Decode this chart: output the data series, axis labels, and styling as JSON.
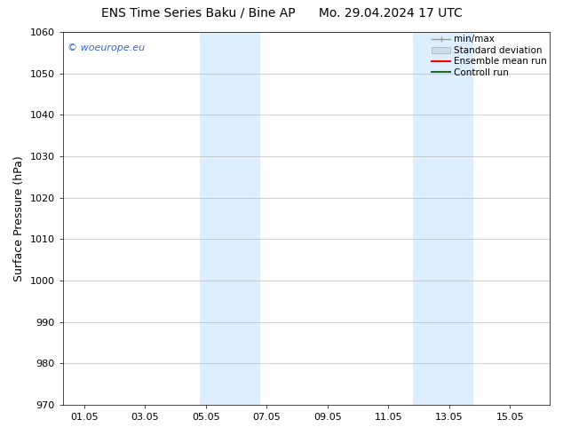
{
  "title_left": "ENS Time Series Baku / Bine AP",
  "title_right": "Mo. 29.04.2024 17 UTC",
  "ylabel": "Surface Pressure (hPa)",
  "ylim": [
    970,
    1060
  ],
  "yticks": [
    970,
    980,
    990,
    1000,
    1010,
    1020,
    1030,
    1040,
    1050,
    1060
  ],
  "xtick_labels": [
    "01.05",
    "03.05",
    "05.05",
    "07.05",
    "09.05",
    "11.05",
    "13.05",
    "15.05"
  ],
  "xtick_positions": [
    0,
    2,
    4,
    6,
    8,
    10,
    12,
    14
  ],
  "xmin": -0.7,
  "xmax": 15.3,
  "shade_regions": [
    {
      "xmin": 3.8,
      "xmax": 5.8
    },
    {
      "xmin": 10.8,
      "xmax": 12.8
    }
  ],
  "shade_color": "#ddeeff",
  "watermark_text": "© woeurope.eu",
  "watermark_color": "#3366cc",
  "legend_items": [
    {
      "label": "min/max",
      "color": "#aaaaaa",
      "style": "minmax"
    },
    {
      "label": "Standard deviation",
      "color": "#ccddee",
      "style": "band"
    },
    {
      "label": "Ensemble mean run",
      "color": "#ff0000",
      "style": "line"
    },
    {
      "label": "Controll run",
      "color": "#226622",
      "style": "line"
    }
  ],
  "bg_color": "#ffffff",
  "grid_color": "#bbbbbb",
  "title_fontsize": 10,
  "axis_fontsize": 9,
  "tick_fontsize": 8,
  "legend_fontsize": 7.5
}
